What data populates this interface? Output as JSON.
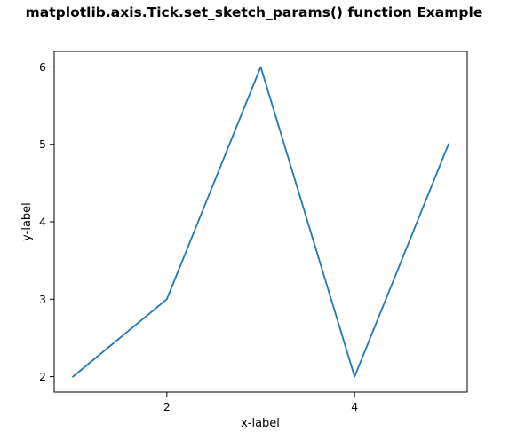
{
  "chart_data": {
    "type": "line",
    "title": "matplotlib.axis.Tick.set_sketch_params() function Example",
    "xlabel": "x-label",
    "ylabel": "y-label",
    "x": [
      1,
      2,
      3,
      4,
      5
    ],
    "series": [
      {
        "values": [
          2,
          3,
          6,
          2,
          5
        ],
        "color": "#1f77b4"
      }
    ],
    "xlim": [
      0.8,
      5.2
    ],
    "ylim": [
      1.8,
      6.2
    ],
    "xticks": [
      2,
      4
    ],
    "yticks": [
      2,
      3,
      4,
      5,
      6
    ],
    "grid": false,
    "legend": "none"
  }
}
